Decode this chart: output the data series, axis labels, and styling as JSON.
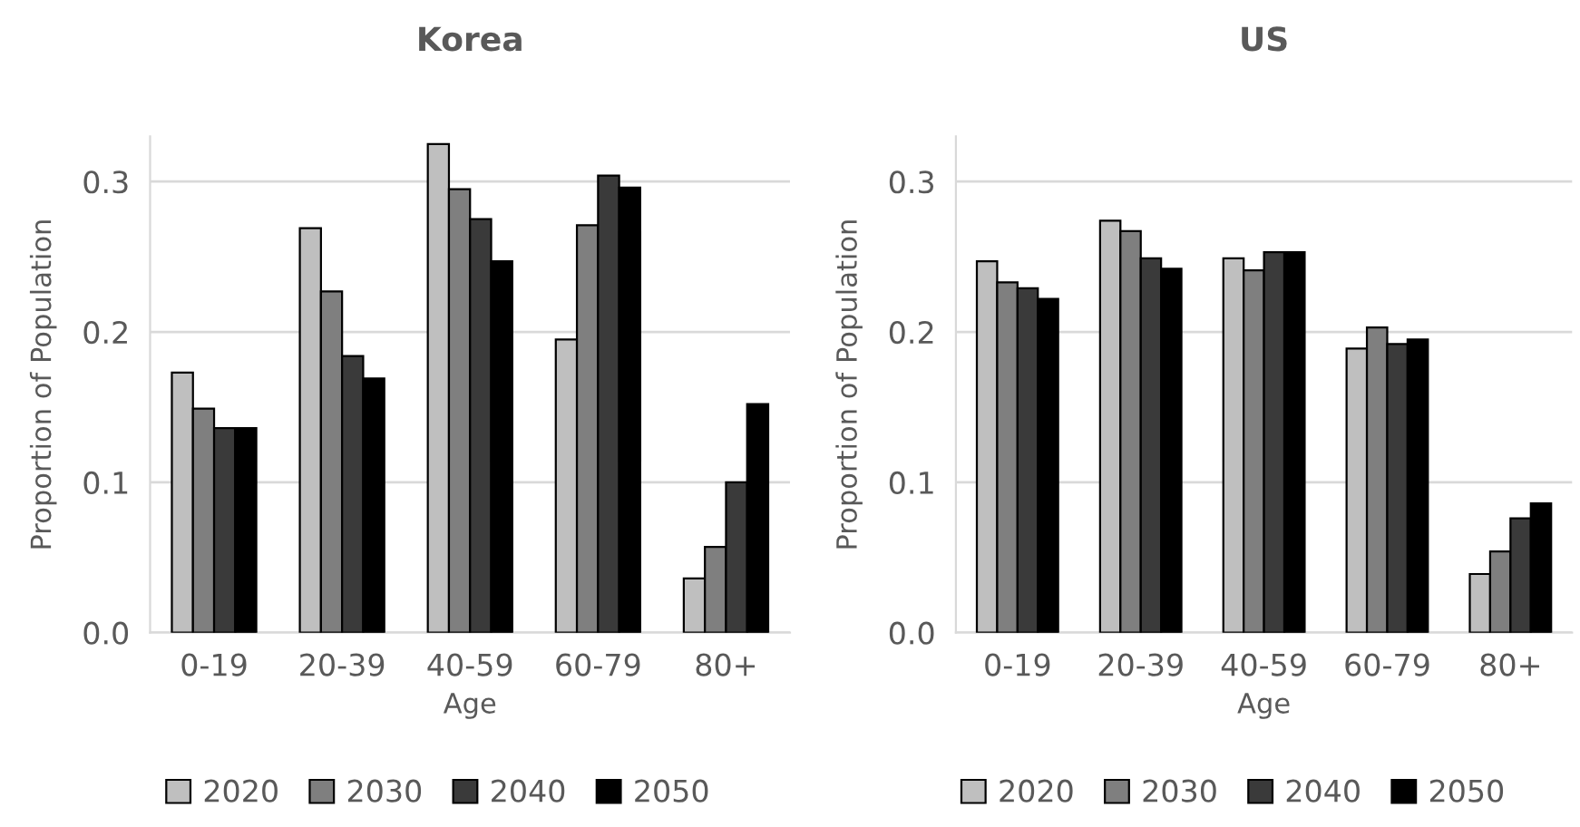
{
  "chart_data": [
    {
      "type": "bar",
      "title": "Korea",
      "xlabel": "Age",
      "ylabel": "Proportion of Population",
      "categories": [
        "0-19",
        "20-39",
        "40-59",
        "60-79",
        "80+"
      ],
      "series": [
        {
          "name": "2020",
          "color": "#bfbfbf",
          "values": [
            0.173,
            0.269,
            0.325,
            0.195,
            0.036
          ]
        },
        {
          "name": "2030",
          "color": "#7f7f7f",
          "values": [
            0.149,
            0.227,
            0.295,
            0.271,
            0.057
          ]
        },
        {
          "name": "2040",
          "color": "#3a3a3a",
          "values": [
            0.136,
            0.184,
            0.275,
            0.304,
            0.1
          ]
        },
        {
          "name": "2050",
          "color": "#000000",
          "values": [
            0.136,
            0.169,
            0.247,
            0.296,
            0.152
          ]
        }
      ],
      "ylim": [
        0,
        0.33
      ],
      "yticks": [
        {
          "value": 0,
          "label": "0.0"
        },
        0.1,
        0.2,
        0.3
      ],
      "grid": "y",
      "legend": "bottom"
    },
    {
      "type": "bar",
      "title": "US",
      "xlabel": "Age",
      "ylabel": "Proportion of Population",
      "categories": [
        "0-19",
        "20-39",
        "40-59",
        "60-79",
        "80+"
      ],
      "series": [
        {
          "name": "2020",
          "color": "#bfbfbf",
          "values": [
            0.247,
            0.274,
            0.249,
            0.189,
            0.039
          ]
        },
        {
          "name": "2030",
          "color": "#7f7f7f",
          "values": [
            0.233,
            0.267,
            0.241,
            0.203,
            0.054
          ]
        },
        {
          "name": "2040",
          "color": "#3a3a3a",
          "values": [
            0.229,
            0.249,
            0.253,
            0.192,
            0.076
          ]
        },
        {
          "name": "2050",
          "color": "#000000",
          "values": [
            0.222,
            0.242,
            0.253,
            0.195,
            0.086
          ]
        }
      ],
      "ylim": [
        0,
        0.33
      ],
      "yticks": [
        {
          "value": 0,
          "label": "0.0"
        },
        0.1,
        0.2,
        0.3
      ],
      "grid": "y",
      "legend": "bottom"
    }
  ]
}
